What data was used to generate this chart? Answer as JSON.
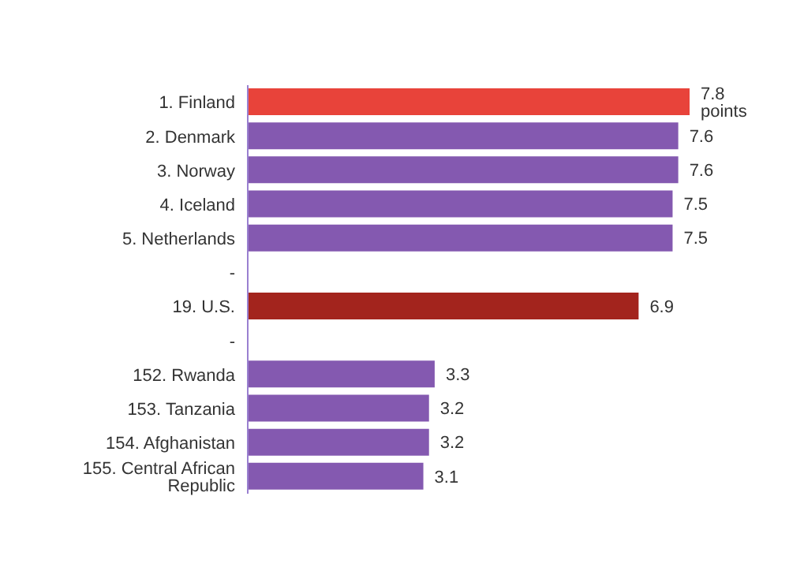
{
  "chart_data": {
    "type": "bar",
    "orientation": "horizontal",
    "categories": [
      "1. Finland",
      "2. Denmark",
      "3. Norway",
      "4. Iceland",
      "5. Netherlands",
      "-",
      "19. U.S.",
      "-",
      "152. Rwanda",
      "153. Tanzania",
      "154. Afghanistan",
      "155. Central African Republic"
    ],
    "values": [
      7.8,
      7.6,
      7.6,
      7.5,
      7.5,
      null,
      6.9,
      null,
      3.3,
      3.2,
      3.2,
      3.1
    ],
    "colors": [
      "#e8433a",
      "#8459b0",
      "#8459b0",
      "#8459b0",
      "#8459b0",
      null,
      "#a3241d",
      null,
      "#8459b0",
      "#8459b0",
      "#8459b0",
      "#8459b0"
    ],
    "value_labels": [
      "7.8 points",
      "7.6",
      "7.6",
      "7.5",
      "7.5",
      null,
      "6.9",
      null,
      "3.3",
      "3.2",
      "3.2",
      "3.1"
    ],
    "grid": false,
    "legend": false
  }
}
